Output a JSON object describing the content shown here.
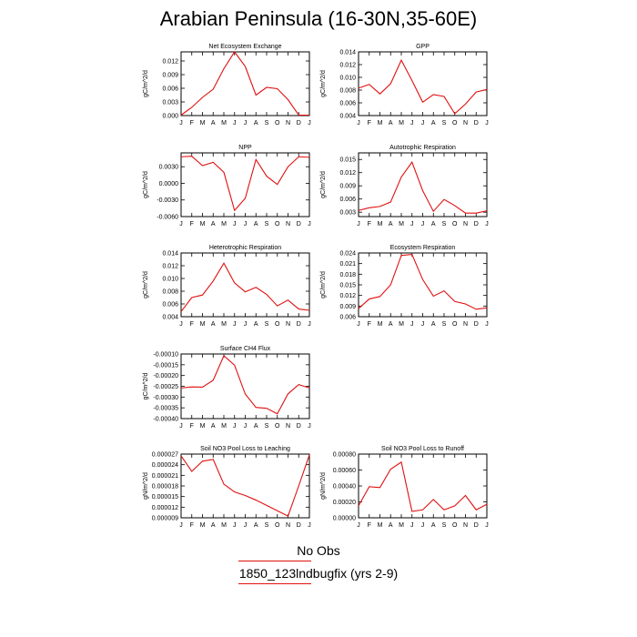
{
  "title": "Arabian Peninsula (16-30N,35-60E)",
  "legend": {
    "obs_label": "No Obs",
    "model_label": "1850_123lndbugfix (yrs 2-9)",
    "model_color": "#e01010"
  },
  "months": [
    "J",
    "F",
    "M",
    "A",
    "M",
    "J",
    "J",
    "A",
    "S",
    "O",
    "N",
    "D",
    "J"
  ],
  "chart_data": [
    {
      "type": "line",
      "title": "Net Ecosystem Exchange",
      "ylabel": "gC/m^2/d",
      "ylim": [
        0,
        0.014
      ],
      "yticks": [
        "0.000",
        "0.003",
        "0.006",
        "0.009",
        "0.012"
      ],
      "ytick_values": [
        0,
        0.003,
        0.006,
        0.009,
        0.012
      ],
      "series": [
        {
          "values": [
            0.0001,
            0.0018,
            0.004,
            0.0058,
            0.0103,
            0.014,
            0.0108,
            0.0045,
            0.0062,
            0.0059,
            0.0035,
            0.0001,
            0.0001
          ]
        }
      ]
    },
    {
      "type": "line",
      "title": "GPP",
      "ylabel": "gC/m^2/d",
      "ylim": [
        0.004,
        0.014
      ],
      "yticks": [
        "0.004",
        "0.006",
        "0.008",
        "0.010",
        "0.012",
        "0.014"
      ],
      "ytick_values": [
        0.004,
        0.006,
        0.008,
        0.01,
        0.012,
        0.014
      ],
      "series": [
        {
          "values": [
            0.0083,
            0.0089,
            0.0074,
            0.009,
            0.0127,
            0.0095,
            0.0061,
            0.0073,
            0.007,
            0.0043,
            0.0058,
            0.0077,
            0.0081
          ]
        }
      ]
    },
    {
      "type": "line",
      "title": "NPP",
      "ylabel": "gC/m^2/d",
      "ylim": [
        -0.006,
        0.0055
      ],
      "yticks": [
        "-0.0060",
        "-0.0030",
        "0.0000",
        "0.0030"
      ],
      "ytick_values": [
        -0.006,
        -0.003,
        0,
        0.003
      ],
      "series": [
        {
          "values": [
            0.0048,
            0.0049,
            0.0032,
            0.0038,
            0.002,
            -0.0049,
            -0.0027,
            0.0043,
            0.0013,
            -0.0002,
            0.003,
            0.0048,
            0.0047
          ]
        }
      ]
    },
    {
      "type": "line",
      "title": "Autotrophic Respiration",
      "ylabel": "gC/m^2/d",
      "ylim": [
        0.002,
        0.0165
      ],
      "yticks": [
        "0.003",
        "0.006",
        "0.009",
        "0.012",
        "0.015"
      ],
      "ytick_values": [
        0.003,
        0.006,
        0.009,
        0.012,
        0.015
      ],
      "series": [
        {
          "values": [
            0.0034,
            0.004,
            0.0043,
            0.0053,
            0.011,
            0.0144,
            0.0079,
            0.0032,
            0.0059,
            0.0045,
            0.0028,
            0.0028,
            0.0033
          ]
        }
      ]
    },
    {
      "type": "line",
      "title": "Heterotrophic Respiration",
      "ylabel": "gC/m^2/d",
      "ylim": [
        0.004,
        0.014
      ],
      "yticks": [
        "0.004",
        "0.006",
        "0.008",
        "0.010",
        "0.012",
        "0.014"
      ],
      "ytick_values": [
        0.004,
        0.006,
        0.008,
        0.01,
        0.012,
        0.014
      ],
      "series": [
        {
          "values": [
            0.0048,
            0.007,
            0.0074,
            0.0096,
            0.0124,
            0.0093,
            0.0079,
            0.0086,
            0.0075,
            0.0057,
            0.0066,
            0.0052,
            0.005
          ]
        }
      ]
    },
    {
      "type": "line",
      "title": "Ecosystem Respiration",
      "ylabel": "gC/m^2/d",
      "ylim": [
        0.006,
        0.024
      ],
      "yticks": [
        "0.006",
        "0.009",
        "0.012",
        "0.015",
        "0.018",
        "0.021",
        "0.024"
      ],
      "ytick_values": [
        0.006,
        0.009,
        0.012,
        0.015,
        0.018,
        0.021,
        0.024
      ],
      "series": [
        {
          "values": [
            0.0083,
            0.011,
            0.0117,
            0.015,
            0.0233,
            0.0236,
            0.0165,
            0.0118,
            0.0133,
            0.0103,
            0.0096,
            0.0081,
            0.0085
          ]
        }
      ]
    },
    {
      "type": "line",
      "title": "Surface CH4 Flux",
      "ylabel": "gC/m^2/d",
      "ylim": [
        -0.0004,
        -0.0001
      ],
      "yticks": [
        "-0.00040",
        "-0.00035",
        "-0.00030",
        "-0.00025",
        "-0.00020",
        "-0.00015",
        "-0.00010"
      ],
      "ytick_values": [
        -0.0004,
        -0.00035,
        -0.0003,
        -0.00025,
        -0.0002,
        -0.00015,
        -0.0001
      ],
      "series": [
        {
          "values": [
            -0.000258,
            -0.000253,
            -0.000254,
            -0.000222,
            -0.000108,
            -0.000152,
            -0.000286,
            -0.000348,
            -0.000352,
            -0.000378,
            -0.000285,
            -0.000242,
            -0.000258
          ]
        }
      ]
    },
    {
      "type": "line",
      "title": "Soil NO3 Pool Loss to Leaching",
      "ylabel": "gN/m^2/d",
      "ylim": [
        9e-06,
        2.7e-05
      ],
      "yticks": [
        "0.000009",
        "0.000012",
        "0.000015",
        "0.000018",
        "0.000021",
        "0.000024",
        "0.000027"
      ],
      "ytick_values": [
        9e-06,
        1.2e-05,
        1.5e-05,
        1.8e-05,
        2.1e-05,
        2.4e-05,
        2.7e-05
      ],
      "series": [
        {
          "values": [
            2.65e-05,
            2.21e-05,
            2.5e-05,
            2.55e-05,
            1.85e-05,
            1.63e-05,
            1.53e-05,
            1.4e-05,
            1.25e-05,
            1.1e-05,
            9.5e-06,
            1.8e-05,
            2.68e-05
          ]
        }
      ]
    },
    {
      "type": "line",
      "title": "Soil NO3 Pool Loss to Runoff",
      "ylabel": "gN/m^2/d",
      "ylim": [
        0,
        0.0008
      ],
      "yticks": [
        "0.00000",
        "0.00020",
        "0.00040",
        "0.00060",
        "0.00080"
      ],
      "ytick_values": [
        0,
        0.0002,
        0.0004,
        0.0006,
        0.0008
      ],
      "series": [
        {
          "values": [
            0.00015,
            0.00039,
            0.00038,
            0.00061,
            0.0007,
            8e-05,
            0.0001,
            0.00023,
            0.0001,
            0.00015,
            0.00028,
            0.0001,
            0.00017
          ]
        }
      ]
    }
  ]
}
